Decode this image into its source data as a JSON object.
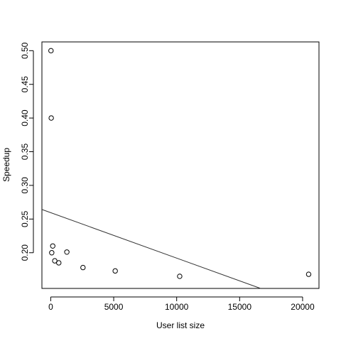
{
  "chart_data": {
    "type": "scatter",
    "xlabel": "User list size",
    "ylabel": "Speedup",
    "xlim": [
      -700,
      21300
    ],
    "ylim": [
      0.147,
      0.513
    ],
    "x_ticks": [
      0,
      5000,
      10000,
      15000,
      20000
    ],
    "x_tick_labels": [
      "0",
      "5000",
      "10000",
      "15000",
      "20000"
    ],
    "y_ticks": [
      0.2,
      0.25,
      0.3,
      0.35,
      0.4,
      0.45,
      0.5
    ],
    "y_tick_labels": [
      "0.20",
      "0.25",
      "0.30",
      "0.35",
      "0.40",
      "0.45",
      "0.50"
    ],
    "grid": false,
    "points": [
      {
        "x": 20,
        "y": 0.5
      },
      {
        "x": 40,
        "y": 0.4
      },
      {
        "x": 80,
        "y": 0.2
      },
      {
        "x": 160,
        "y": 0.21
      },
      {
        "x": 320,
        "y": 0.188
      },
      {
        "x": 640,
        "y": 0.185
      },
      {
        "x": 1280,
        "y": 0.201
      },
      {
        "x": 2560,
        "y": 0.178
      },
      {
        "x": 5120,
        "y": 0.173
      },
      {
        "x": 10240,
        "y": 0.165
      },
      {
        "x": 20480,
        "y": 0.168
      }
    ],
    "regression_line": {
      "intercept": 0.2595,
      "slope": -6.75e-06
    }
  }
}
